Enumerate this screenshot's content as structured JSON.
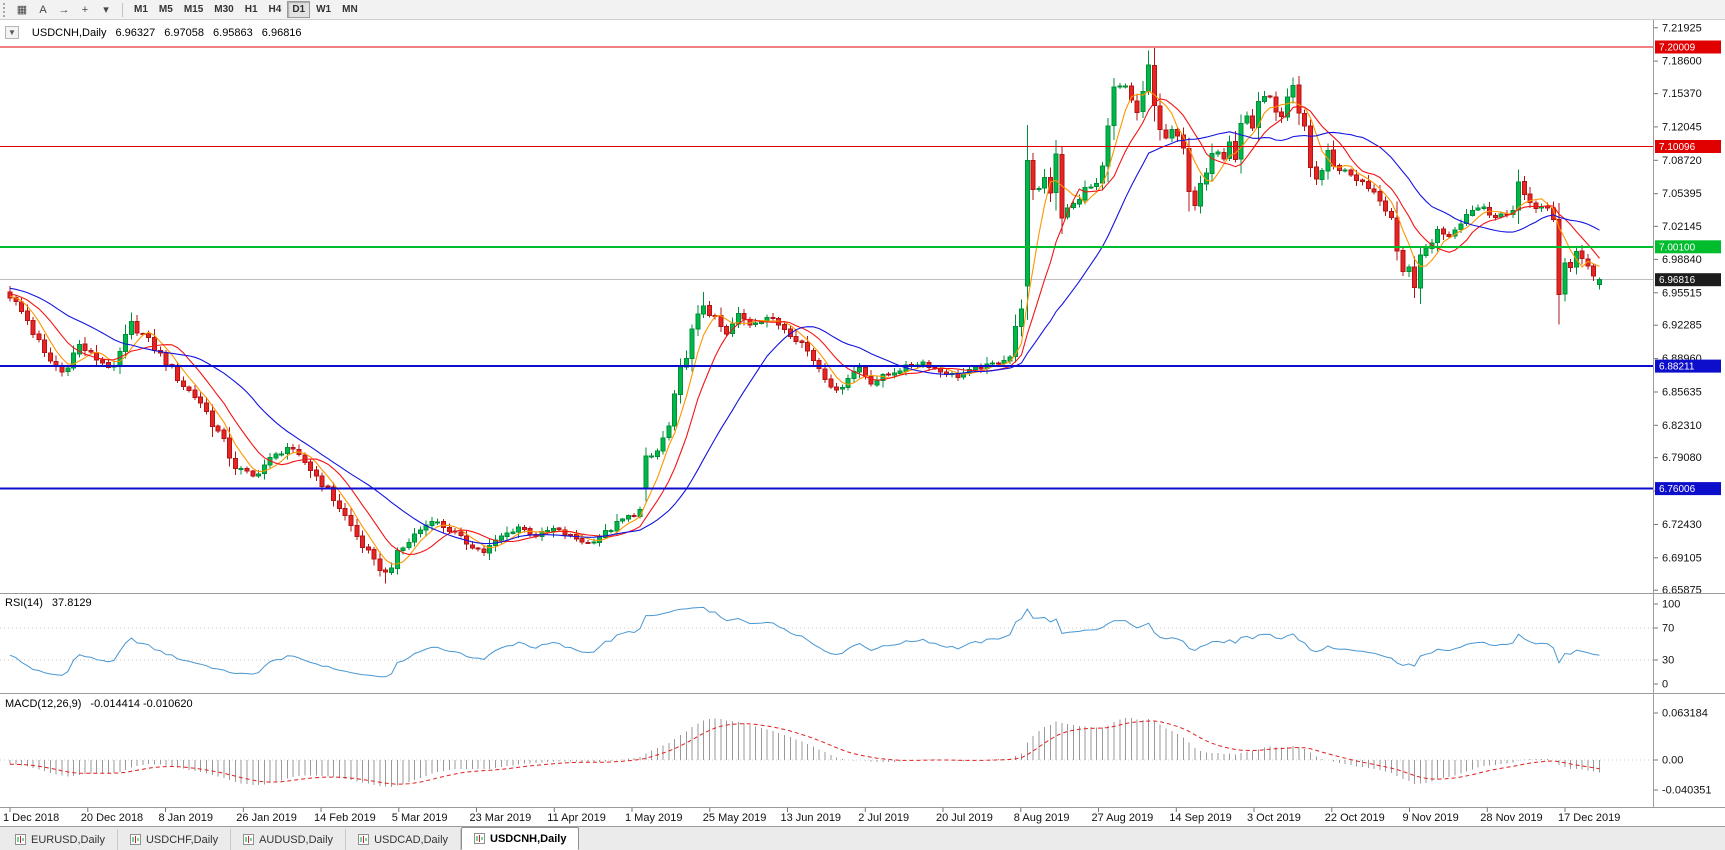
{
  "toolbar": {
    "icon_buttons": [
      {
        "name": "charts-grid-icon",
        "glyph": "▦"
      },
      {
        "name": "autoscroll-icon",
        "glyph": "A"
      },
      {
        "name": "chart-shift-icon",
        "glyph": "→"
      },
      {
        "name": "indicators-icon",
        "glyph": "+"
      },
      {
        "name": "indicators-caret-icon",
        "glyph": "▾"
      }
    ],
    "timeframes": [
      "M1",
      "M5",
      "M15",
      "M30",
      "H1",
      "H4",
      "D1",
      "W1",
      "MN"
    ],
    "active_timeframe": "D1"
  },
  "chart": {
    "symbol_label": "USDCNH,Daily",
    "ohlc": {
      "open": "6.96327",
      "high": "6.97058",
      "low": "6.95863",
      "close": "6.96816"
    },
    "price_scale": [
      "7.21925",
      "7.18600",
      "7.15370",
      "7.12045",
      "7.08720",
      "7.05395",
      "7.02145",
      "6.98840",
      "6.95515",
      "6.92285",
      "6.88960",
      "6.85635",
      "6.82310",
      "6.79080",
      "6.75755",
      "6.72430",
      "6.69105",
      "6.65875"
    ],
    "time_scale": [
      "1 Dec 2018",
      "20 Dec 2018",
      "8 Jan 2019",
      "26 Jan 2019",
      "14 Feb 2019",
      "5 Mar 2019",
      "23 Mar 2019",
      "11 Apr 2019",
      "1 May 2019",
      "25 May 2019",
      "13 Jun 2019",
      "2 Jul 2019",
      "20 Jul 2019",
      "8 Aug 2019",
      "27 Aug 2019",
      "14 Sep 2019",
      "3 Oct 2019",
      "22 Oct 2019",
      "9 Nov 2019",
      "28 Nov 2019",
      "17 Dec 2019"
    ],
    "levels": [
      {
        "label": "7.20009",
        "price": 7.20009,
        "color": "#e00000",
        "width": 1
      },
      {
        "label": "7.10096",
        "price": 7.10096,
        "color": "#e00000",
        "width": 1
      },
      {
        "label": "7.00100",
        "price": 7.001,
        "color": "#00bd2e",
        "width": 2
      },
      {
        "label": "6.88211",
        "price": 6.88211,
        "color": "#0d0dcc",
        "width": 2
      },
      {
        "label": "6.76006",
        "price": 6.76006,
        "color": "#0d0dcc",
        "width": 2
      }
    ],
    "current_price": {
      "label": "6.96816",
      "price": 6.96816,
      "tag_color": "#1c1c1c",
      "line_color": "#c0c0c0"
    }
  },
  "indicators": {
    "rsi": {
      "label": "RSI(14)",
      "value": "37.8129",
      "scale": [
        "100",
        "70",
        "30",
        "0"
      ],
      "level_values": [
        100,
        70,
        30,
        0
      ],
      "guides": [
        70,
        30
      ],
      "line_color": "#4a97d2"
    },
    "macd": {
      "label": "MACD(12,26,9)",
      "value": "-0.014414 -0.010620",
      "scale": [
        "0.063184",
        "0.00",
        "-0.040351"
      ],
      "scale_values": [
        0.063184,
        0,
        -0.040351
      ],
      "histogram_color": "#9a9a9a",
      "signal_color": "#e02020"
    }
  },
  "tabs": {
    "items": [
      "EURUSD,Daily",
      "USDCHF,Daily",
      "AUDUSD,Daily",
      "USDCAD,Daily",
      "USDCNH,Daily"
    ],
    "active": "USDCNH,Daily"
  },
  "chart_data": {
    "type": "candlestick",
    "symbol": "USDCNH",
    "period": "Daily",
    "title": "USDCNH,Daily",
    "bars": 276,
    "x_range": [
      "1 Dec 2018",
      "24 Dec 2019"
    ],
    "price_range": [
      6.657,
      7.227
    ],
    "up_color": "#00b84a",
    "up_border": "#008f38",
    "down_color": "#e82525",
    "down_border": "#b51414",
    "ma_lines": [
      {
        "name": "fast",
        "period": 5,
        "color": "#ff9500"
      },
      {
        "name": "mid",
        "period": 10,
        "color": "#f21515"
      },
      {
        "name": "slow",
        "period": 22,
        "color": "#1414e0"
      }
    ],
    "close_anchors": [
      [
        0,
        6.952
      ],
      [
        3,
        6.928
      ],
      [
        6,
        6.893
      ],
      [
        9,
        6.876
      ],
      [
        12,
        6.903
      ],
      [
        15,
        6.889
      ],
      [
        18,
        6.879
      ],
      [
        21,
        6.924
      ],
      [
        24,
        6.907
      ],
      [
        27,
        6.886
      ],
      [
        30,
        6.863
      ],
      [
        33,
        6.846
      ],
      [
        36,
        6.816
      ],
      [
        39,
        6.782
      ],
      [
        42,
        6.772
      ],
      [
        45,
        6.789
      ],
      [
        48,
        6.801
      ],
      [
        51,
        6.786
      ],
      [
        54,
        6.766
      ],
      [
        57,
        6.742
      ],
      [
        60,
        6.712
      ],
      [
        63,
        6.686
      ],
      [
        65,
        6.676
      ],
      [
        67,
        6.694
      ],
      [
        70,
        6.714
      ],
      [
        73,
        6.729
      ],
      [
        76,
        6.719
      ],
      [
        79,
        6.706
      ],
      [
        82,
        6.697
      ],
      [
        85,
        6.712
      ],
      [
        88,
        6.722
      ],
      [
        91,
        6.713
      ],
      [
        94,
        6.72
      ],
      [
        97,
        6.712
      ],
      [
        100,
        6.706
      ],
      [
        103,
        6.716
      ],
      [
        106,
        6.729
      ],
      [
        109,
        6.737
      ],
      [
        110,
        6.787
      ],
      [
        112,
        6.797
      ],
      [
        114,
        6.821
      ],
      [
        116,
        6.876
      ],
      [
        118,
        6.915
      ],
      [
        120,
        6.943
      ],
      [
        122,
        6.928
      ],
      [
        124,
        6.913
      ],
      [
        126,
        6.933
      ],
      [
        128,
        6.924
      ],
      [
        131,
        6.931
      ],
      [
        134,
        6.92
      ],
      [
        137,
        6.905
      ],
      [
        140,
        6.881
      ],
      [
        143,
        6.857
      ],
      [
        145,
        6.872
      ],
      [
        147,
        6.881
      ],
      [
        149,
        6.866
      ],
      [
        152,
        6.874
      ],
      [
        155,
        6.881
      ],
      [
        158,
        6.886
      ],
      [
        161,
        6.877
      ],
      [
        164,
        6.872
      ],
      [
        167,
        6.879
      ],
      [
        170,
        6.884
      ],
      [
        173,
        6.892
      ],
      [
        175,
        6.944
      ],
      [
        176,
        7.083
      ],
      [
        177,
        7.053
      ],
      [
        178,
        7.061
      ],
      [
        179,
        7.07
      ],
      [
        180,
        7.058
      ],
      [
        181,
        7.096
      ],
      [
        182,
        7.033
      ],
      [
        184,
        7.043
      ],
      [
        186,
        7.058
      ],
      [
        188,
        7.063
      ],
      [
        189,
        7.079
      ],
      [
        190,
        7.127
      ],
      [
        191,
        7.157
      ],
      [
        192,
        7.161
      ],
      [
        193,
        7.157
      ],
      [
        194,
        7.143
      ],
      [
        195,
        7.133
      ],
      [
        196,
        7.153
      ],
      [
        197,
        7.18
      ],
      [
        198,
        7.141
      ],
      [
        199,
        7.119
      ],
      [
        200,
        7.109
      ],
      [
        201,
        7.118
      ],
      [
        202,
        7.107
      ],
      [
        203,
        7.097
      ],
      [
        204,
        7.061
      ],
      [
        205,
        7.043
      ],
      [
        206,
        7.059
      ],
      [
        207,
        7.073
      ],
      [
        208,
        7.089
      ],
      [
        209,
        7.097
      ],
      [
        210,
        7.091
      ],
      [
        211,
        7.107
      ],
      [
        212,
        7.093
      ],
      [
        213,
        7.127
      ],
      [
        214,
        7.131
      ],
      [
        215,
        7.119
      ],
      [
        216,
        7.147
      ],
      [
        217,
        7.151
      ],
      [
        218,
        7.147
      ],
      [
        219,
        7.139
      ],
      [
        220,
        7.129
      ],
      [
        221,
        7.147
      ],
      [
        222,
        7.157
      ],
      [
        223,
        7.131
      ],
      [
        224,
        7.117
      ],
      [
        225,
        7.079
      ],
      [
        226,
        7.069
      ],
      [
        227,
        7.077
      ],
      [
        228,
        7.097
      ],
      [
        229,
        7.079
      ],
      [
        231,
        7.077
      ],
      [
        233,
        7.069
      ],
      [
        235,
        7.059
      ],
      [
        237,
        7.049
      ],
      [
        239,
        7.029
      ],
      [
        240,
        6.991
      ],
      [
        241,
        6.973
      ],
      [
        242,
        6.979
      ],
      [
        243,
        6.963
      ],
      [
        244,
        6.987
      ],
      [
        245,
        6.999
      ],
      [
        247,
        7.017
      ],
      [
        249,
        7.013
      ],
      [
        251,
        7.027
      ],
      [
        253,
        7.039
      ],
      [
        255,
        7.041
      ],
      [
        257,
        7.031
      ],
      [
        259,
        7.033
      ],
      [
        260,
        7.041
      ],
      [
        261,
        7.066
      ],
      [
        262,
        7.051
      ],
      [
        264,
        7.041
      ],
      [
        266,
        7.039
      ],
      [
        267,
        7.031
      ],
      [
        268,
        6.953
      ],
      [
        269,
        6.987
      ],
      [
        270,
        6.981
      ],
      [
        271,
        6.999
      ],
      [
        272,
        6.993
      ],
      [
        273,
        6.984
      ],
      [
        274,
        6.974
      ],
      [
        275,
        6.968
      ]
    ],
    "open_overrides": {
      "110": 6.76,
      "176": 6.962
    },
    "wick_overrides": {
      "65": {
        "low": 6.6655
      },
      "120": {
        "high": 6.956
      },
      "176": {
        "high": 7.112,
        "low": 6.941
      },
      "181": {
        "high": 7.105
      },
      "197": {
        "high": 7.1965
      },
      "204": {
        "low": 7.036
      },
      "243": {
        "low": 6.9535
      },
      "261": {
        "high": 7.078
      },
      "268": {
        "low": 6.9235
      }
    },
    "last_bar": {
      "open": 6.96327,
      "high": 6.97058,
      "low": 6.95863,
      "close": 6.96816
    }
  }
}
